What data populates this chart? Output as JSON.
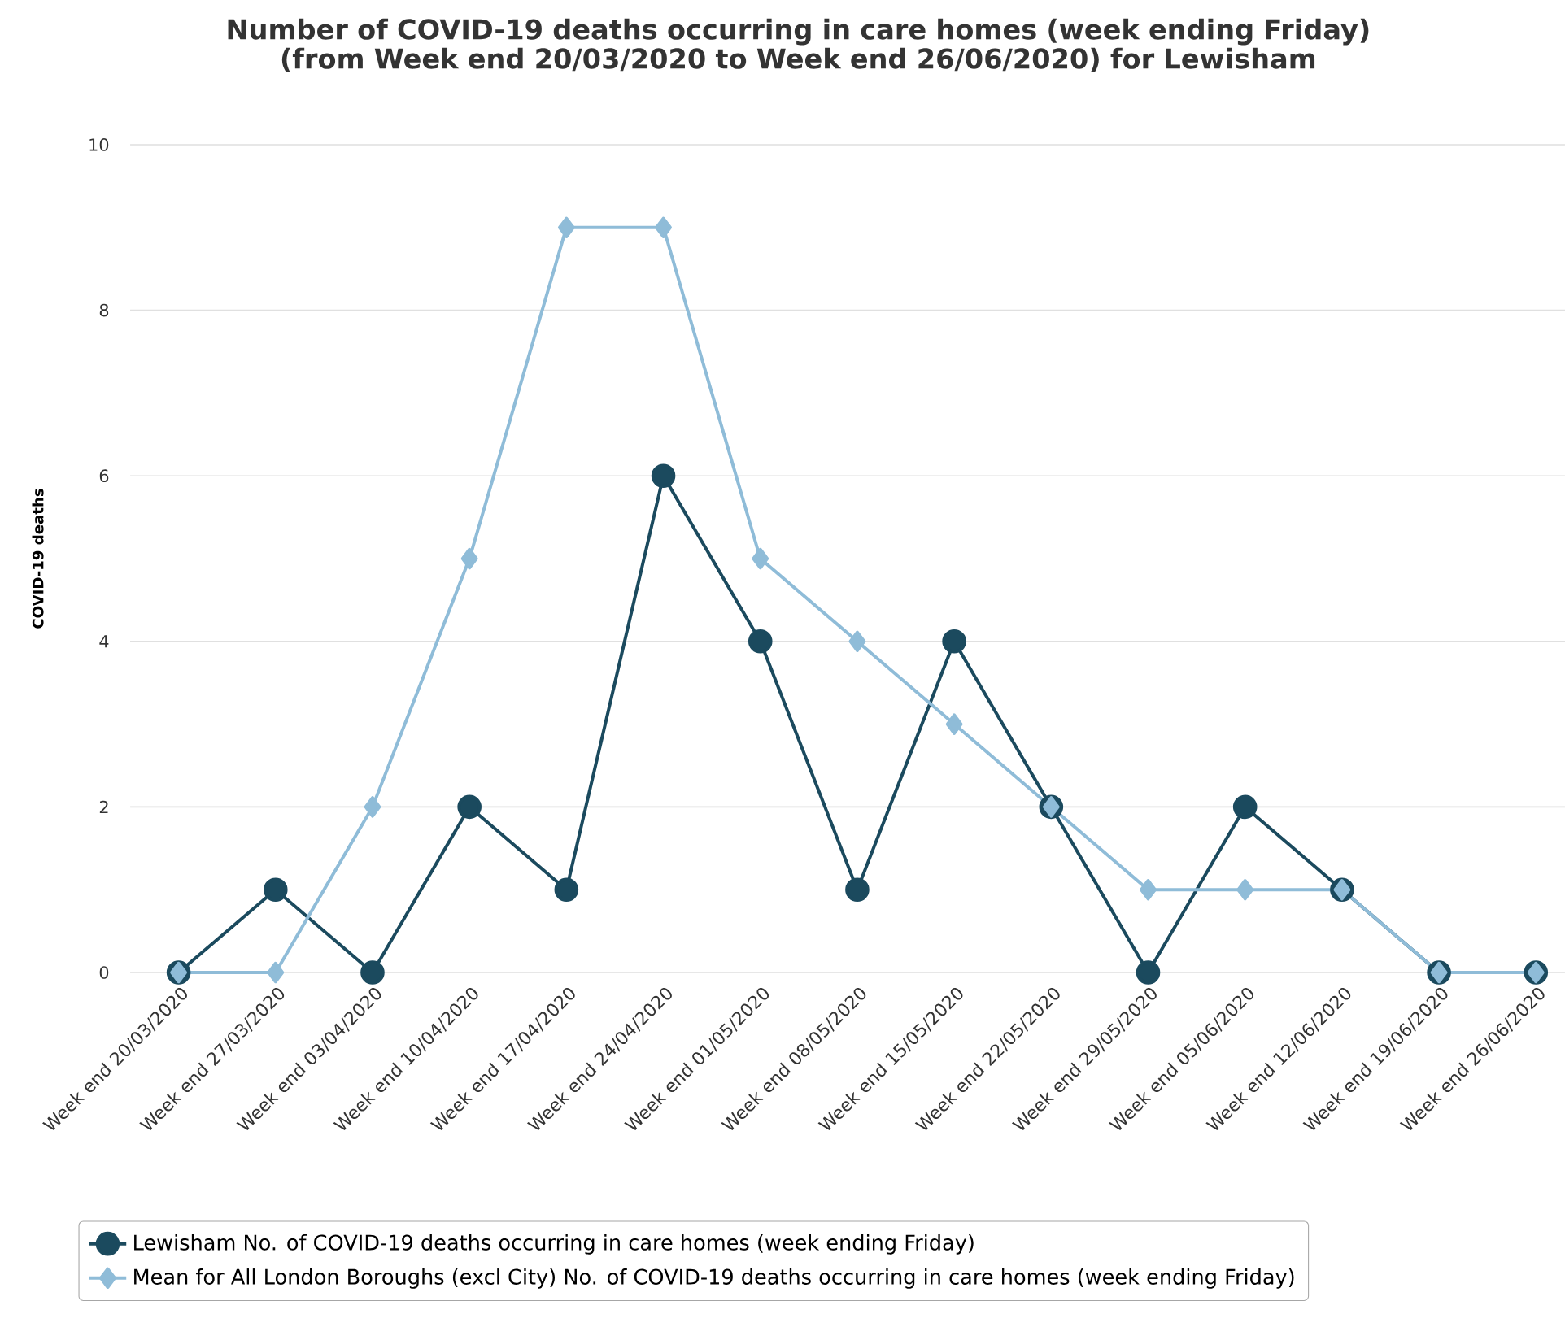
{
  "chart_data": {
    "type": "line",
    "title": "Number of COVID-19 deaths occurring in care homes (week ending Friday) (from Week end 20/03/2020 to Week end 26/06/2020) for Lewisham",
    "ylabel": "COVID-19 deaths",
    "categories": [
      "Week end 20/03/2020",
      "Week end 27/03/2020",
      "Week end 03/04/2020",
      "Week end 10/04/2020",
      "Week end 17/04/2020",
      "Week end 24/04/2020",
      "Week end 01/05/2020",
      "Week end 08/05/2020",
      "Week end 15/05/2020",
      "Week end 22/05/2020",
      "Week end 29/05/2020",
      "Week end 05/06/2020",
      "Week end 12/06/2020",
      "Week end 19/06/2020",
      "Week end 26/06/2020"
    ],
    "series": [
      {
        "name": "Lewisham No. of COVID-19 deaths occurring in care homes (week ending Friday)",
        "color": "#1b4a5e",
        "marker": "circle",
        "values": [
          0,
          1,
          0,
          2,
          1,
          6,
          4,
          1,
          4,
          2,
          0,
          2,
          1,
          0,
          0
        ]
      },
      {
        "name": "Mean for All London Boroughs (excl City) No. of COVID-19 deaths occurring in care homes (week ending Friday)",
        "color": "#8fbcd8",
        "marker": "diamond",
        "values": [
          0,
          0,
          2,
          5,
          9,
          9,
          5,
          4,
          3,
          2,
          1,
          1,
          1,
          0,
          0
        ]
      }
    ],
    "ylim": [
      0,
      10
    ],
    "yticks": [
      0,
      2,
      4,
      6,
      8,
      10
    ],
    "grid": "y",
    "legend": "bottom",
    "line_style": "solid"
  }
}
